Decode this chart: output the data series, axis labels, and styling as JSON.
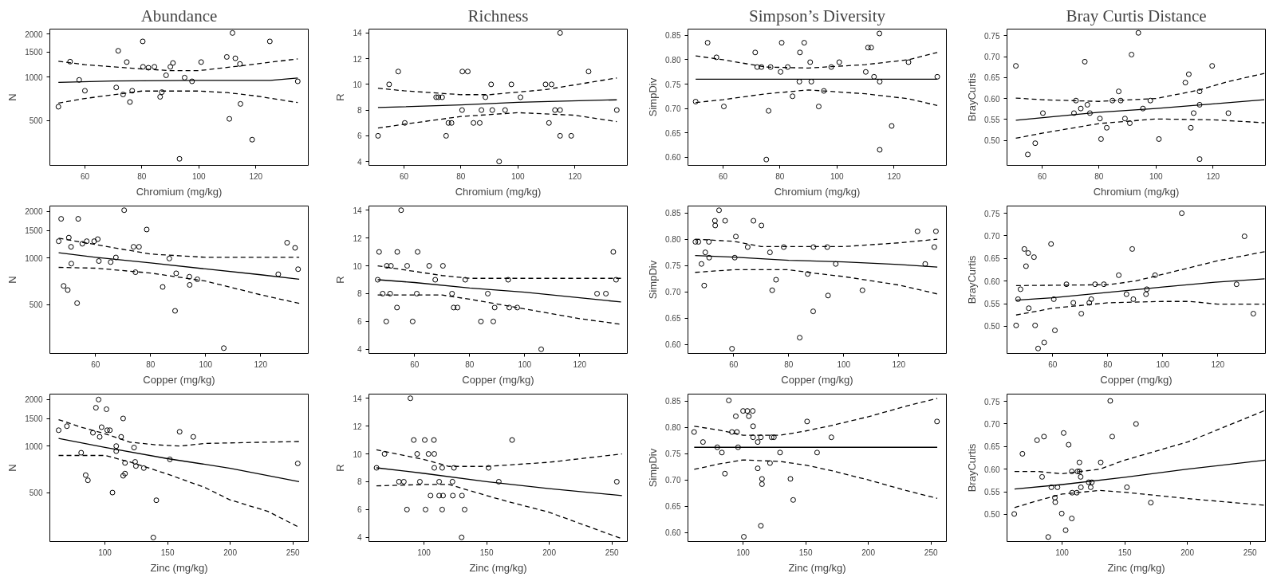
{
  "chart_data": [
    {
      "type": "scatter",
      "title": "Abundance",
      "xlabel": "Chromium (mg/kg)",
      "ylabel": "N",
      "log": "y",
      "xlim": [
        47.7,
        138.4
      ],
      "ylim": [
        243,
        2160
      ],
      "xticks": [
        60,
        80,
        100,
        120
      ],
      "yticks": [
        500,
        1000,
        1500,
        2000
      ],
      "series": [
        {
          "type": "scatter",
          "marker": "circle",
          "color": "#000000",
          "x": [
            50.7,
            54.8,
            58,
            60,
            71.7,
            71,
            73.4,
            74.7,
            75.8,
            76.6,
            80.3,
            80.4,
            82.3,
            84.4,
            86.4,
            87,
            88.5,
            90,
            90.9,
            93.2,
            95,
            97.6,
            100.8,
            109.8,
            110.7,
            111.8,
            112.8,
            114.4,
            114.6,
            118.7,
            124.9,
            134.7
          ],
          "values": [
            622,
            1282,
            956,
            804,
            1525,
            847,
            757,
            1273,
            671,
            804,
            1773,
            1180,
            1162,
            1180,
            729,
            786,
            1030,
            1180,
            1254,
            270,
            992,
            935,
            1273,
            1382,
            512,
            2030,
            1352,
            1235,
            651,
            367,
            1773,
            935
          ]
        },
        {
          "type": "line",
          "line_style": "solid",
          "color": "#000000",
          "x": [
            50.7,
            70,
            100,
            125,
            134.7
          ],
          "values": [
            920,
            940,
            950,
            950,
            985
          ]
        },
        {
          "type": "line",
          "line_style": "dashed",
          "color": "#000000",
          "x": [
            50.7,
            60,
            80,
            90,
            100,
            115,
            134.7
          ],
          "values": [
            1291,
            1220,
            1140,
            1110,
            1110,
            1200,
            1340
          ]
        },
        {
          "type": "line",
          "line_style": "dashed",
          "color": "#000000",
          "x": [
            50.7,
            60,
            80,
            100,
            110,
            120,
            134.7
          ],
          "values": [
            660,
            710,
            800,
            800,
            780,
            740,
            665
          ]
        }
      ]
    },
    {
      "type": "scatter",
      "title": "Richness",
      "xlabel": "Chromium (mg/kg)",
      "ylabel": "R",
      "xlim": [
        47.7,
        138.4
      ],
      "ylim": [
        3.7,
        14.3
      ],
      "xticks": [
        60,
        80,
        100,
        120
      ],
      "yticks": [
        4,
        6,
        8,
        10,
        12,
        14
      ],
      "series": [
        {
          "type": "scatter",
          "marker": "circle",
          "color": "#000000",
          "x": [
            50.9,
            54.8,
            58,
            60.3,
            71.3,
            72.1,
            73.4,
            74.8,
            75.6,
            76.7,
            80.4,
            80.5,
            82.4,
            84.4,
            86.6,
            87.2,
            88.6,
            90.6,
            91,
            93.4,
            95.5,
            97.7,
            100.9,
            109.7,
            110.9,
            111.8,
            113,
            114.8,
            114.8,
            114.8,
            118.7,
            124.8,
            134.7
          ],
          "values": [
            6,
            10,
            11,
            7,
            9,
            9,
            9,
            6,
            7,
            7,
            8,
            11,
            11,
            7,
            7,
            8,
            9,
            10,
            8,
            4,
            8,
            10,
            9,
            10,
            7,
            10,
            8,
            14,
            6,
            8,
            6,
            11,
            8
          ]
        },
        {
          "type": "line",
          "line_style": "solid",
          "color": "#000000",
          "x": [
            50.9,
            80,
            100,
            134.7
          ],
          "values": [
            8.2,
            8.4,
            8.6,
            8.8
          ]
        },
        {
          "type": "line",
          "line_style": "dashed",
          "color": "#000000",
          "x": [
            50.9,
            60,
            80,
            90,
            110,
            134.7
          ],
          "values": [
            9.7,
            9.5,
            9.2,
            9.2,
            9.6,
            10.5
          ]
        },
        {
          "type": "line",
          "line_style": "dashed",
          "color": "#000000",
          "x": [
            50.9,
            60,
            80,
            100,
            120,
            134.7
          ],
          "values": [
            6.6,
            6.9,
            7.5,
            7.8,
            7.6,
            7.1
          ]
        }
      ]
    },
    {
      "type": "scatter",
      "title": "Simpson’s Diversity",
      "xlabel": "Chromium (mg/kg)",
      "ylabel": "SimpDiv",
      "xlim": [
        47.7,
        138.4
      ],
      "ylim": [
        0.583,
        0.863
      ],
      "xticks": [
        60,
        80,
        100,
        120
      ],
      "yticks": [
        {
          "value": 0.6,
          "label": "0.60"
        },
        0.65,
        {
          "value": 0.7,
          "label": "0.70"
        },
        0.75,
        {
          "value": 0.8,
          "label": "0.80"
        },
        0.85
      ],
      "series": [
        {
          "type": "scatter",
          "marker": "circle",
          "color": "#000000",
          "x": [
            50.4,
            54.6,
            57.7,
            60.3,
            71.3,
            72,
            73.5,
            75.2,
            76,
            76.7,
            80.2,
            80.6,
            82.7,
            84.4,
            86.8,
            87,
            88.5,
            90.6,
            91,
            93.6,
            95.4,
            98,
            100.8,
            110.1,
            110.9,
            112,
            113,
            114.9,
            115,
            115,
            119.2,
            125.1,
            135.2
          ],
          "values": [
            0.714,
            0.835,
            0.805,
            0.704,
            0.815,
            0.785,
            0.785,
            0.595,
            0.695,
            0.785,
            0.775,
            0.835,
            0.785,
            0.725,
            0.755,
            0.815,
            0.835,
            0.795,
            0.755,
            0.704,
            0.736,
            0.785,
            0.795,
            0.775,
            0.825,
            0.825,
            0.765,
            0.854,
            0.755,
            0.615,
            0.664,
            0.795,
            0.765
          ]
        },
        {
          "type": "line",
          "line_style": "solid",
          "color": "#000000",
          "x": [
            50.4,
            135.2
          ],
          "values": [
            0.76,
            0.76
          ]
        },
        {
          "type": "line",
          "line_style": "dashed",
          "color": "#000000",
          "x": [
            50.4,
            60,
            75,
            90,
            110,
            125,
            135.2
          ],
          "values": [
            0.808,
            0.8,
            0.785,
            0.783,
            0.79,
            0.8,
            0.815
          ]
        },
        {
          "type": "line",
          "line_style": "dashed",
          "color": "#000000",
          "x": [
            50.4,
            60,
            75,
            90,
            110,
            125,
            135.2
          ],
          "values": [
            0.712,
            0.718,
            0.73,
            0.738,
            0.73,
            0.72,
            0.706
          ]
        }
      ]
    },
    {
      "type": "scatter",
      "title": "Bray Curtis Distance",
      "xlabel": "Chromium (mg/kg)",
      "ylabel": "BrayCurtis",
      "xlim": [
        47.7,
        138.4
      ],
      "ylim": [
        0.44,
        0.766
      ],
      "xticks": [
        60,
        80,
        100,
        120
      ],
      "yticks": [
        {
          "value": 0.5,
          "label": "0.50"
        },
        0.55,
        {
          "value": 0.6,
          "label": "0.60"
        },
        0.65,
        {
          "value": 0.7,
          "label": "0.70"
        },
        0.75
      ],
      "series": [
        {
          "type": "scatter",
          "marker": "circle",
          "color": "#000000",
          "x": [
            50.8,
            55,
            57.6,
            60.3,
            71.2,
            71.9,
            73.6,
            75,
            75.9,
            76.8,
            80.3,
            80.7,
            82.7,
            84.7,
            86.9,
            87.6,
            89.1,
            90.8,
            91.4,
            93.8,
            95.4,
            98,
            101,
            110.3,
            111.5,
            112.2,
            113.2,
            115.3,
            115.3,
            115.3,
            119.7,
            125.4
          ],
          "values": [
            0.678,
            0.466,
            0.493,
            0.565,
            0.565,
            0.595,
            0.576,
            0.688,
            0.585,
            0.565,
            0.552,
            0.503,
            0.53,
            0.595,
            0.617,
            0.595,
            0.552,
            0.541,
            0.705,
            0.757,
            0.576,
            0.595,
            0.503,
            0.638,
            0.658,
            0.53,
            0.565,
            0.617,
            0.585,
            0.455,
            0.678,
            0.565
          ]
        },
        {
          "type": "line",
          "line_style": "solid",
          "color": "#000000",
          "x": [
            50.8,
            80,
            100,
            120,
            138
          ],
          "values": [
            0.548,
            0.567,
            0.576,
            0.587,
            0.597
          ]
        },
        {
          "type": "line",
          "line_style": "dashed",
          "color": "#000000",
          "x": [
            50.8,
            60,
            80,
            100,
            115,
            125,
            138
          ],
          "values": [
            0.601,
            0.597,
            0.593,
            0.6,
            0.62,
            0.64,
            0.66
          ]
        },
        {
          "type": "line",
          "line_style": "dashed",
          "color": "#000000",
          "x": [
            50.8,
            60,
            80,
            100,
            120,
            138
          ],
          "values": [
            0.505,
            0.517,
            0.54,
            0.551,
            0.549,
            0.542
          ]
        }
      ]
    },
    {
      "type": "scatter",
      "xlabel": "Copper (mg/kg)",
      "ylabel": "N",
      "log": "y",
      "xlim": [
        43.4,
        137.3
      ],
      "ylim": [
        243,
        2160
      ],
      "xticks": [
        60,
        80,
        100,
        120
      ],
      "yticks": [
        500,
        1000,
        1500,
        2000
      ],
      "series": [
        {
          "type": "scatter",
          "marker": "circle",
          "color": "#000000",
          "x": [
            46.6,
            47.5,
            48.4,
            49.9,
            50.3,
            51.1,
            51.2,
            53.3,
            53.7,
            55.2,
            56.8,
            59.5,
            60.8,
            61.2,
            65.5,
            67.4,
            70.4,
            73.8,
            74.5,
            75.8,
            78.6,
            84.4,
            86.8,
            89.3,
            88.9,
            94.1,
            94.2,
            97,
            106.6,
            126.4,
            129.6,
            132.5,
            133.6
          ],
          "values": [
            1282,
            1786,
            661,
            622,
            1352,
            1180,
            920,
            512,
            1786,
            1235,
            1282,
            1282,
            1322,
            956,
            941,
            1008,
            2030,
            1180,
            810,
            1180,
            1525,
            651,
            992,
            797,
            457,
            757,
            671,
            729,
            263,
            786,
            1254,
            1162,
            847
          ]
        },
        {
          "type": "line",
          "line_style": "solid",
          "color": "#000000",
          "x": [
            46.6,
            60,
            80,
            100,
            120,
            134
          ],
          "values": [
            1080,
            1010,
            930,
            850,
            780,
            730
          ]
        },
        {
          "type": "line",
          "line_style": "dashed",
          "color": "#000000",
          "x": [
            46.6,
            60,
            80,
            100,
            134
          ],
          "values": [
            1340,
            1220,
            1060,
            1010,
            1010
          ]
        },
        {
          "type": "line",
          "line_style": "dashed",
          "color": "#000000",
          "x": [
            46.6,
            60,
            80,
            100,
            120,
            134
          ],
          "values": [
            870,
            860,
            800,
            710,
            580,
            510
          ]
        }
      ]
    },
    {
      "type": "scatter",
      "xlabel": "Copper (mg/kg)",
      "ylabel": "R",
      "xlim": [
        43.4,
        137.3
      ],
      "ylim": [
        3.7,
        14.3
      ],
      "xticks": [
        60,
        80,
        100,
        120
      ],
      "yticks": [
        4,
        6,
        8,
        10,
        12,
        14
      ],
      "series": [
        {
          "type": "scatter",
          "marker": "circle",
          "color": "#000000",
          "x": [
            46.6,
            47.1,
            48.4,
            49.7,
            49.9,
            51.4,
            51.1,
            53.6,
            53.7,
            55.1,
            59.3,
            57.3,
            60.8,
            61.1,
            65.3,
            67.5,
            70.3,
            73.6,
            74.2,
            75.6,
            78.4,
            84.1,
            86.6,
            88.6,
            89.1,
            94,
            94.4,
            97.3,
            106,
            126.3,
            129.5,
            132.2,
            133.2
          ],
          "values": [
            9,
            11,
            8,
            6,
            10,
            10,
            8,
            7,
            11,
            14,
            6,
            10,
            8,
            11,
            10,
            9,
            10,
            8,
            7,
            7,
            9,
            6,
            8,
            6,
            7,
            9,
            7,
            7,
            4,
            8,
            8,
            11,
            9
          ]
        },
        {
          "type": "line",
          "line_style": "solid",
          "color": "#000000",
          "x": [
            46.6,
            60,
            80,
            100,
            120,
            135
          ],
          "values": [
            9,
            8.8,
            8.4,
            8.1,
            7.7,
            7.4
          ]
        },
        {
          "type": "line",
          "line_style": "dashed",
          "color": "#000000",
          "x": [
            46.6,
            60,
            70,
            80,
            135
          ],
          "values": [
            10,
            9.6,
            9.3,
            9.1,
            9.1
          ]
        },
        {
          "type": "line",
          "line_style": "dashed",
          "color": "#000000",
          "x": [
            46.6,
            70,
            80,
            100,
            120,
            135
          ],
          "values": [
            7.9,
            7.9,
            7.6,
            6.9,
            6.2,
            5.8
          ]
        }
      ]
    },
    {
      "type": "scatter",
      "xlabel": "Copper (mg/kg)",
      "ylabel": "SimpDiv",
      "xlim": [
        43.4,
        137.3
      ],
      "ylim": [
        0.583,
        0.863
      ],
      "xticks": [
        60,
        80,
        100,
        120
      ],
      "yticks": [
        {
          "value": 0.6,
          "label": "0.60"
        },
        0.65,
        {
          "value": 0.7,
          "label": "0.70"
        },
        0.75,
        {
          "value": 0.8,
          "label": "0.80"
        },
        0.85
      ],
      "series": [
        {
          "type": "scatter",
          "marker": "circle",
          "color": "#000000",
          "x": [
            46.1,
            47.2,
            48.3,
            49.3,
            49.7,
            51,
            51.1,
            53.2,
            53.3,
            54.7,
            56.9,
            59.4,
            60.4,
            60.8,
            65.1,
            67.2,
            70.1,
            73.2,
            74,
            75.4,
            78.2,
            84,
            86.9,
            88.9,
            89,
            94,
            94.3,
            97.1,
            106.8,
            126.8,
            129.6,
            132.9,
            133.5
          ],
          "values": [
            0.795,
            0.795,
            0.753,
            0.712,
            0.775,
            0.795,
            0.765,
            0.835,
            0.826,
            0.855,
            0.835,
            0.592,
            0.765,
            0.805,
            0.785,
            0.835,
            0.826,
            0.775,
            0.703,
            0.723,
            0.785,
            0.613,
            0.734,
            0.663,
            0.785,
            0.785,
            0.693,
            0.753,
            0.703,
            0.815,
            0.753,
            0.785,
            0.815
          ]
        },
        {
          "type": "line",
          "line_style": "solid",
          "color": "#000000",
          "x": [
            46,
            60,
            80,
            100,
            120,
            134
          ],
          "values": [
            0.769,
            0.766,
            0.76,
            0.757,
            0.752,
            0.747
          ]
        },
        {
          "type": "line",
          "line_style": "dashed",
          "color": "#000000",
          "x": [
            46,
            60,
            70,
            100,
            120,
            134
          ],
          "values": [
            0.8,
            0.796,
            0.786,
            0.786,
            0.793,
            0.8
          ]
        },
        {
          "type": "line",
          "line_style": "dashed",
          "color": "#000000",
          "x": [
            46,
            60,
            80,
            90,
            100,
            120,
            134
          ],
          "values": [
            0.737,
            0.742,
            0.742,
            0.735,
            0.729,
            0.713,
            0.696
          ]
        }
      ]
    },
    {
      "type": "scatter",
      "xlabel": "Copper (mg/kg)",
      "ylabel": "BrayCurtis",
      "xlim": [
        43.4,
        137.3
      ],
      "ylim": [
        0.44,
        0.766
      ],
      "xticks": [
        60,
        80,
        100,
        120
      ],
      "yticks": [
        {
          "value": 0.5,
          "label": "0.50"
        },
        0.55,
        {
          "value": 0.6,
          "label": "0.60"
        },
        0.65,
        {
          "value": 0.7,
          "label": "0.70"
        },
        0.75
      ],
      "series": [
        {
          "type": "scatter",
          "marker": "circle",
          "color": "#000000",
          "x": [
            46.7,
            47.4,
            48.3,
            49.7,
            50.3,
            51.1,
            51.3,
            53.2,
            53.6,
            54.7,
            56.9,
            59.4,
            60.4,
            60.8,
            65,
            67.5,
            70.4,
            73.3,
            74,
            75.4,
            78.6,
            84,
            86.8,
            88.9,
            89.3,
            93.9,
            94.2,
            97.2,
            106.9,
            126.8,
            129.7,
            132.9
          ],
          "values": [
            0.502,
            0.56,
            0.582,
            0.671,
            0.633,
            0.662,
            0.54,
            0.653,
            0.502,
            0.451,
            0.464,
            0.682,
            0.56,
            0.491,
            0.593,
            0.552,
            0.528,
            0.552,
            0.56,
            0.593,
            0.593,
            0.613,
            0.571,
            0.671,
            0.56,
            0.571,
            0.582,
            0.613,
            0.75,
            0.593,
            0.699,
            0.528
          ]
        },
        {
          "type": "line",
          "line_style": "solid",
          "color": "#000000",
          "x": [
            46.7,
            60,
            80,
            100,
            120,
            137
          ],
          "values": [
            0.558,
            0.563,
            0.575,
            0.587,
            0.598,
            0.605
          ]
        },
        {
          "type": "line",
          "line_style": "dashed",
          "color": "#000000",
          "x": [
            46.7,
            80,
            90,
            100,
            120,
            137
          ],
          "values": [
            0.59,
            0.592,
            0.6,
            0.615,
            0.645,
            0.665
          ]
        },
        {
          "type": "line",
          "line_style": "dashed",
          "color": "#000000",
          "x": [
            46.7,
            60,
            80,
            100,
            110,
            120,
            137
          ],
          "values": [
            0.525,
            0.54,
            0.552,
            0.555,
            0.555,
            0.549,
            0.549
          ]
        }
      ]
    },
    {
      "type": "scatter",
      "xlabel": "Zinc (mg/kg)",
      "ylabel": "N",
      "log": "y",
      "xlim": [
        56,
        262.3
      ],
      "ylim": [
        243,
        2160
      ],
      "xticks": [
        100,
        150,
        200,
        250
      ],
      "yticks": [
        500,
        1000,
        1500,
        2000
      ],
      "series": [
        {
          "type": "scatter",
          "marker": "circle",
          "color": "#000000",
          "x": [
            63,
            69.6,
            81,
            84.6,
            86.4,
            90.4,
            92.8,
            94.9,
            95.8,
            97.3,
            101.2,
            101.8,
            103.9,
            106,
            109,
            109,
            112.9,
            114.5,
            114.5,
            116,
            116,
            123.2,
            124.1,
            124.7,
            131,
            138.6,
            141,
            151.8,
            159.6,
            170.5,
            253.9
          ],
          "values": [
            1265,
            1343,
            906,
            650,
            602,
            1218,
            1765,
            1992,
            1146,
            1323,
            1726,
            1265,
            1265,
            502,
            1000,
            927,
            1146,
            1506,
            644,
            665,
            779,
            978,
            791,
            744,
            722,
            258,
            448,
            821,
            1236,
            1146,
            773
          ]
        },
        {
          "type": "line",
          "line_style": "solid",
          "color": "#000000",
          "x": [
            63,
            100,
            150,
            200,
            255
          ],
          "values": [
            1120,
            980,
            830,
            720,
            590
          ]
        },
        {
          "type": "line",
          "line_style": "dashed",
          "color": "#000000",
          "x": [
            63,
            80,
            100,
            120,
            140,
            160,
            180,
            255
          ],
          "values": [
            1480,
            1330,
            1200,
            1060,
            1020,
            1000,
            1040,
            1070
          ]
        },
        {
          "type": "line",
          "line_style": "dashed",
          "color": "#000000",
          "x": [
            63,
            100,
            120,
            150,
            180,
            200,
            230,
            255
          ],
          "values": [
            870,
            870,
            790,
            660,
            540,
            450,
            380,
            300
          ]
        }
      ]
    },
    {
      "type": "scatter",
      "xlabel": "Zinc (mg/kg)",
      "ylabel": "R",
      "xlim": [
        56,
        262.3
      ],
      "ylim": [
        3.7,
        14.3
      ],
      "xticks": [
        100,
        150,
        200,
        250
      ],
      "yticks": [
        4,
        6,
        8,
        10,
        12,
        14
      ],
      "series": [
        {
          "type": "scatter",
          "marker": "circle",
          "color": "#000000",
          "x": [
            62.1,
            68.5,
            80,
            83.9,
            86.4,
            89.1,
            91.8,
            94.5,
            96.7,
            100.6,
            101.2,
            103.6,
            105.2,
            107.9,
            108.2,
            108.2,
            112.1,
            112.1,
            114.5,
            114.5,
            115.2,
            122.7,
            123,
            123.9,
            130.3,
            130,
            132.4,
            151.5,
            159.7,
            170.3,
            253.9
          ],
          "values": [
            9,
            10,
            8,
            8,
            6,
            14,
            11,
            10,
            8,
            11,
            6,
            10,
            7,
            11,
            10,
            9,
            8,
            7,
            9,
            6,
            7,
            8,
            7,
            9,
            7,
            4,
            6,
            9,
            8,
            11,
            8
          ]
        },
        {
          "type": "line",
          "line_style": "solid",
          "color": "#000000",
          "x": [
            62,
            100,
            150,
            200,
            258
          ],
          "values": [
            9,
            8.6,
            8,
            7.5,
            7
          ]
        },
        {
          "type": "line",
          "line_style": "dashed",
          "color": "#000000",
          "x": [
            62,
            100,
            120,
            150,
            200,
            258
          ],
          "values": [
            10.3,
            9.6,
            9.1,
            9.1,
            9.4,
            10
          ]
        },
        {
          "type": "line",
          "line_style": "dashed",
          "color": "#000000",
          "x": [
            62,
            100,
            120,
            150,
            170,
            200,
            258
          ],
          "values": [
            7.7,
            7.8,
            7.8,
            7,
            6.5,
            5.8,
            3.9
          ]
        }
      ]
    },
    {
      "type": "scatter",
      "xlabel": "Zinc (mg/kg)",
      "ylabel": "SimpDiv",
      "xlim": [
        56,
        262.3
      ],
      "ylim": [
        0.583,
        0.863
      ],
      "xticks": [
        100,
        150,
        200,
        250
      ],
      "yticks": [
        {
          "value": 0.6,
          "label": "0.60"
        },
        0.65,
        {
          "value": 0.7,
          "label": "0.70"
        },
        0.75,
        {
          "value": 0.8,
          "label": "0.80"
        },
        0.85
      ],
      "series": [
        {
          "type": "scatter",
          "marker": "circle",
          "color": "#000000",
          "x": [
            60.9,
            68,
            79.4,
            83.1,
            85.5,
            88.6,
            91.1,
            94.2,
            95.1,
            96,
            100,
            100.6,
            103.4,
            104.6,
            107.7,
            108,
            108,
            111.7,
            111.7,
            114.2,
            114.2,
            115.1,
            115.1,
            121.5,
            122.8,
            124.6,
            129.5,
            137.8,
            140,
            151.1,
            159.1,
            170.5,
            254.8
          ],
          "values": [
            0.791,
            0.772,
            0.762,
            0.752,
            0.712,
            0.851,
            0.791,
            0.821,
            0.791,
            0.762,
            0.831,
            0.592,
            0.831,
            0.821,
            0.831,
            0.802,
            0.781,
            0.772,
            0.722,
            0.781,
            0.613,
            0.702,
            0.692,
            0.732,
            0.781,
            0.781,
            0.752,
            0.702,
            0.662,
            0.811,
            0.752,
            0.781,
            0.811
          ]
        },
        {
          "type": "line",
          "line_style": "solid",
          "color": "#000000",
          "x": [
            61,
            255
          ],
          "values": [
            0.762,
            0.762
          ]
        },
        {
          "type": "line",
          "line_style": "dashed",
          "color": "#000000",
          "x": [
            61,
            80,
            100,
            130,
            150,
            170,
            200,
            230,
            255
          ],
          "values": [
            0.802,
            0.795,
            0.785,
            0.785,
            0.793,
            0.803,
            0.82,
            0.84,
            0.855
          ]
        },
        {
          "type": "line",
          "line_style": "dashed",
          "color": "#000000",
          "x": [
            61,
            80,
            100,
            130,
            150,
            170,
            200,
            230,
            255
          ],
          "values": [
            0.72,
            0.73,
            0.738,
            0.735,
            0.728,
            0.718,
            0.7,
            0.68,
            0.665
          ]
        }
      ]
    },
    {
      "type": "scatter",
      "xlabel": "Zinc (mg/kg)",
      "ylabel": "BrayCurtis",
      "xlim": [
        56,
        262.3
      ],
      "ylim": [
        0.44,
        0.766
      ],
      "xticks": [
        100,
        150,
        200,
        250
      ],
      "yticks": [
        {
          "value": 0.5,
          "label": "0.50"
        },
        0.55,
        {
          "value": 0.6,
          "label": "0.60"
        },
        0.65,
        {
          "value": 0.7,
          "label": "0.70"
        },
        0.75
      ],
      "series": [
        {
          "type": "scatter",
          "marker": "circle",
          "color": "#000000",
          "x": [
            61.8,
            68.3,
            80,
            84,
            85.5,
            88.9,
            91.4,
            94.2,
            94.5,
            96.3,
            99.7,
            101.2,
            102.8,
            105.2,
            107.7,
            107.7,
            108,
            111.7,
            112.3,
            113.8,
            113.8,
            114.8,
            115,
            121.2,
            122.8,
            123.7,
            130.8,
            138.4,
            140,
            151.7,
            159,
            170.8
          ],
          "values": [
            0.501,
            0.634,
            0.664,
            0.583,
            0.672,
            0.45,
            0.56,
            0.537,
            0.527,
            0.56,
            0.502,
            0.68,
            0.465,
            0.654,
            0.595,
            0.491,
            0.548,
            0.548,
            0.595,
            0.615,
            0.595,
            0.583,
            0.56,
            0.571,
            0.56,
            0.571,
            0.615,
            0.751,
            0.672,
            0.56,
            0.7,
            0.526
          ]
        },
        {
          "type": "line",
          "line_style": "solid",
          "color": "#000000",
          "x": [
            62,
            100,
            150,
            200,
            262
          ],
          "values": [
            0.556,
            0.566,
            0.582,
            0.6,
            0.62
          ]
        },
        {
          "type": "line",
          "line_style": "dashed",
          "color": "#000000",
          "x": [
            62,
            80,
            100,
            130,
            150,
            200,
            262
          ],
          "values": [
            0.595,
            0.595,
            0.59,
            0.6,
            0.62,
            0.66,
            0.73
          ]
        },
        {
          "type": "line",
          "line_style": "dashed",
          "color": "#000000",
          "x": [
            62,
            80,
            100,
            130,
            150,
            200,
            262
          ],
          "values": [
            0.515,
            0.53,
            0.545,
            0.553,
            0.549,
            0.535,
            0.52
          ]
        }
      ]
    }
  ]
}
